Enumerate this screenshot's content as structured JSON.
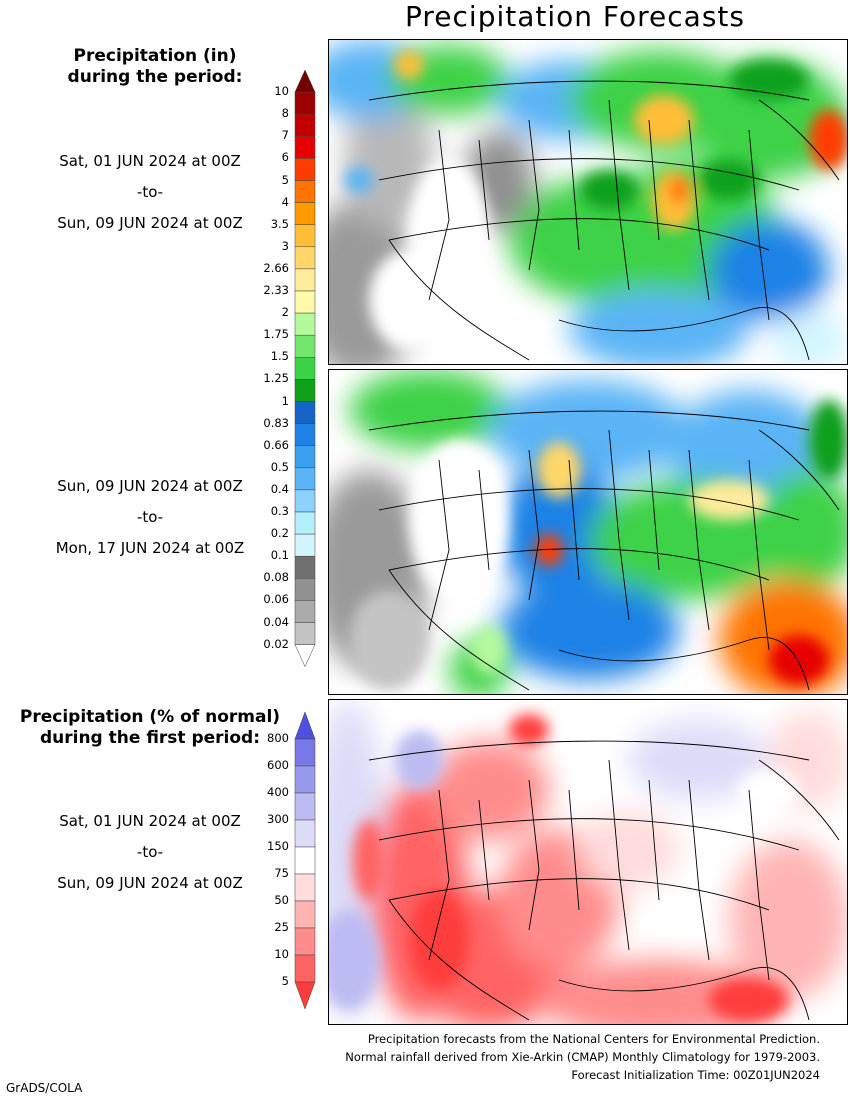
{
  "title": "Precipitation Forecasts",
  "amount_legend": {
    "title_lines": [
      "Precipitation (in)",
      "during the period:"
    ],
    "levels": [
      "10",
      "8",
      "7",
      "6",
      "5",
      "4",
      "3.5",
      "3",
      "2.66",
      "2.33",
      "2",
      "1.75",
      "1.5",
      "1.25",
      "1",
      "0.83",
      "0.66",
      "0.5",
      "0.4",
      "0.3",
      "0.2",
      "0.1",
      "0.08",
      "0.06",
      "0.04",
      "0.02"
    ],
    "colors": [
      "#730000",
      "#9c0000",
      "#c30000",
      "#e60000",
      "#ff3c00",
      "#ff7300",
      "#ff9b00",
      "#ffbe37",
      "#ffd769",
      "#ffeb9b",
      "#fffaaa",
      "#b4fa9b",
      "#73e66e",
      "#3cd246",
      "#10a01a",
      "#1564c8",
      "#1e82e6",
      "#3ca0f0",
      "#5ab4f5",
      "#8cd2ff",
      "#b4f0fa",
      "#d2f5ff",
      "#707070",
      "#909090",
      "#aaaaaa",
      "#c4c4c4",
      "#ffffff"
    ]
  },
  "period1": {
    "start": "Sat, 01 JUN 2024 at 00Z",
    "sep": "-to-",
    "end": "Sun, 09 JUN 2024 at 00Z"
  },
  "period2": {
    "start": "Sun, 09 JUN 2024 at 00Z",
    "sep": "-to-",
    "end": "Mon, 17 JUN 2024 at 00Z"
  },
  "percent_legend": {
    "title_lines": [
      "Precipitation (% of normal)",
      "during the first period:"
    ],
    "levels": [
      "800",
      "600",
      "400",
      "300",
      "150",
      "75",
      "50",
      "25",
      "10",
      "5"
    ],
    "colors": [
      "#5050e0",
      "#7878e6",
      "#9a9aec",
      "#bcbcf2",
      "#dcdcf8",
      "#ffffff",
      "#ffdcdc",
      "#ffb4b4",
      "#ff8c8c",
      "#ff6464",
      "#ff3c3c"
    ]
  },
  "period3": {
    "start": "Sat, 01 JUN 2024 at 00Z",
    "sep": "-to-",
    "end": "Sun, 09 JUN 2024 at 00Z"
  },
  "footer": [
    "Precipitation forecasts from the National Centers for Environmental Prediction.",
    "Normal rainfall derived from Xie-Arkin (CMAP) Monthly Climatology for 1979-2003.",
    "Forecast Initialization Time: 00Z01JUN2024"
  ],
  "credit": "GrADS/COLA"
}
